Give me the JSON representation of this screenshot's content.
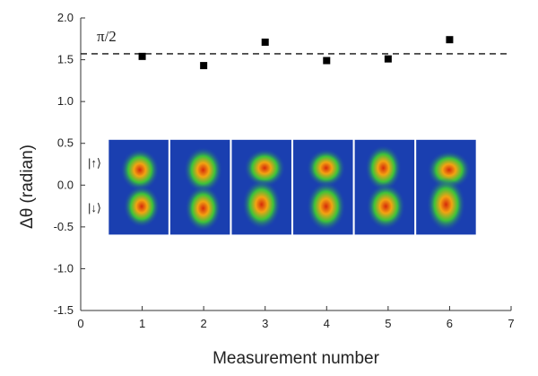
{
  "chart_data": {
    "type": "scatter",
    "xlabel": "Measurement number",
    "ylabel": "Δθ (radian)",
    "xlim": [
      0,
      7
    ],
    "ylim": [
      -1.5,
      2.0
    ],
    "x_ticks": [
      0,
      1,
      2,
      3,
      4,
      5,
      6,
      7
    ],
    "x_tick_labels": [
      "0",
      "1",
      "2",
      "3",
      "4",
      "5",
      "6",
      "7"
    ],
    "y_ticks": [
      2.0,
      1.5,
      1.0,
      0.5,
      0.0,
      -0.5,
      -1.0,
      -1.5
    ],
    "y_tick_labels": [
      "2.0",
      "1.5",
      "1.0",
      "0.5",
      "0.0",
      "-0.5",
      "-1.0",
      "-1.5"
    ],
    "grid": false,
    "points": [
      {
        "x": 1,
        "y": 1.54
      },
      {
        "x": 2,
        "y": 1.43
      },
      {
        "x": 3,
        "y": 1.71
      },
      {
        "x": 4,
        "y": 1.49
      },
      {
        "x": 5,
        "y": 1.51
      },
      {
        "x": 6,
        "y": 1.74
      }
    ],
    "reference_line": {
      "y": 1.5708,
      "label": "π/2",
      "style": "dashed"
    },
    "inset_panels": {
      "count": 6,
      "row_labels": [
        "|↑⟩",
        "|↓⟩"
      ],
      "background": "#1a3fb0"
    }
  }
}
